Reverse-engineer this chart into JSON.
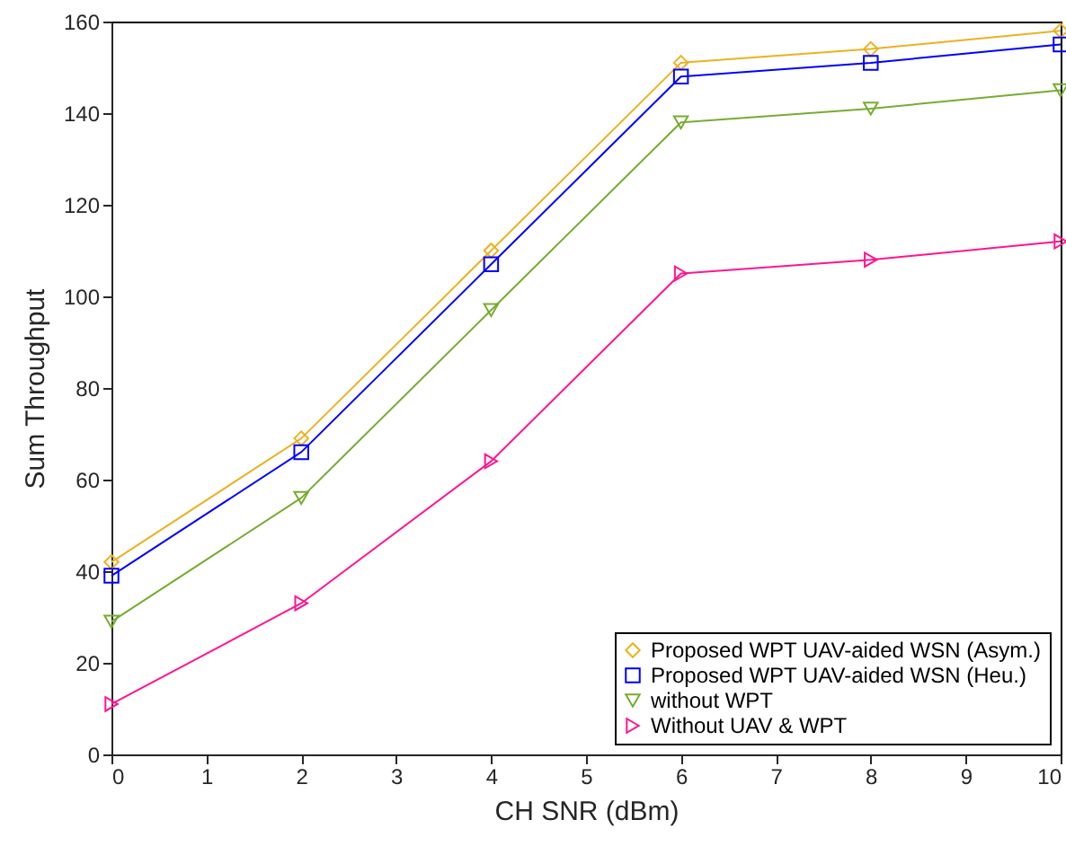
{
  "chart_data": {
    "type": "line",
    "xlabel": "CH SNR (dBm)",
    "ylabel": "Sum Throughput",
    "x": [
      0,
      2,
      4,
      6,
      8,
      10
    ],
    "xlim": [
      0,
      10
    ],
    "xticks": [
      0,
      1,
      2,
      3,
      4,
      5,
      6,
      7,
      8,
      9,
      10
    ],
    "ylim": [
      0,
      160
    ],
    "yticks": [
      0,
      20,
      40,
      60,
      80,
      100,
      120,
      140,
      160
    ],
    "grid": false,
    "legend": "bottom right",
    "series": [
      {
        "name": "Proposed WPT UAV-aided WSN (Asym.)",
        "color": "#edb120",
        "marker": "diamond",
        "values": [
          42,
          69,
          110,
          151,
          154,
          158
        ]
      },
      {
        "name": "Proposed WPT UAV-aided WSN (Heu.)",
        "color": "#0000ff",
        "marker": "square",
        "values": [
          39,
          66,
          107,
          148,
          151,
          155
        ]
      },
      {
        "name": "without WPT",
        "color": "#77ac30",
        "marker": "triangle-down",
        "values": [
          29,
          56,
          97,
          138,
          141,
          145
        ]
      },
      {
        "name": "Without UAV & WPT",
        "color": "#ff1493",
        "marker": "triangle-right",
        "values": [
          11,
          33,
          64,
          105,
          108,
          112
        ]
      }
    ]
  }
}
